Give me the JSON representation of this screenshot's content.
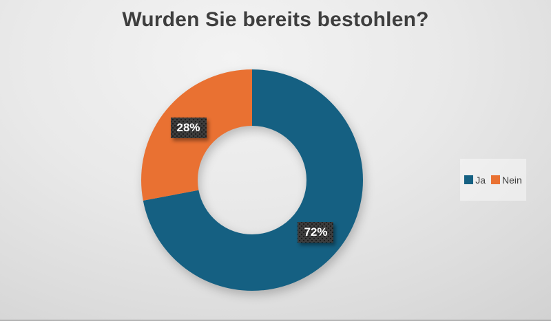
{
  "title": "Wurden Sie bereits bestohlen?",
  "chart_data": {
    "type": "pie",
    "subtype": "donut",
    "title": "Wurden Sie bereits bestohlen?",
    "categories": [
      "Ja",
      "Nein"
    ],
    "values": [
      72,
      28
    ],
    "data_labels": [
      "72%",
      "28%"
    ],
    "colors": [
      "#156082",
      "#E97132"
    ],
    "hole_ratio": 0.49,
    "start_angle_deg": 0,
    "direction": "clockwise",
    "legend_position": "right",
    "legend_entries": [
      "Ja",
      "Nein"
    ]
  },
  "palette": {
    "slice_ja": "#156082",
    "slice_nein": "#E97132",
    "label_badge_background": "#3D3D3D",
    "label_text": "#FFFFFF",
    "title_text": "#3E3E3E",
    "legend_text": "#404040",
    "background_light": "#F3F3F3",
    "background_dark": "#C7C7C7"
  }
}
